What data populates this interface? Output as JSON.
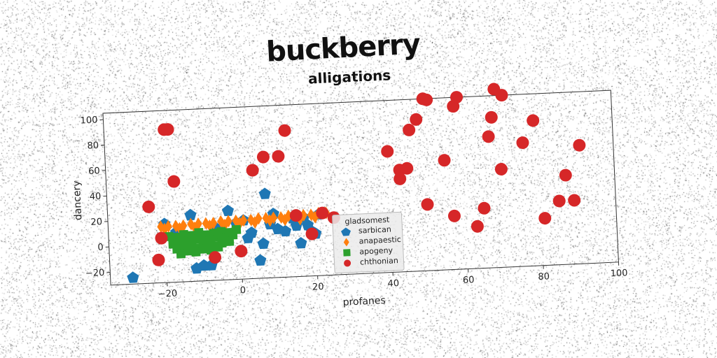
{
  "suptitle": "buckberry",
  "chart_data": {
    "type": "scatter",
    "title": "alligations",
    "xlabel": "profanes",
    "ylabel": "dancery",
    "xlim": [
      -35,
      100
    ],
    "ylim": [
      -30,
      105
    ],
    "xticks": [
      -20,
      0,
      20,
      40,
      60,
      80,
      100
    ],
    "yticks": [
      -20,
      0,
      20,
      40,
      60,
      80,
      100
    ],
    "grid": false,
    "legend": {
      "title": "gladsomest",
      "placement": "center"
    },
    "series": [
      {
        "name": "sarbican",
        "marker": "pentagon",
        "color": "#1f77b4",
        "x": [
          -29,
          -20,
          -17,
          -13,
          -12,
          -10,
          -8,
          -6,
          -5,
          -3,
          -1,
          1,
          2,
          3,
          5,
          6,
          7,
          8,
          9,
          10,
          12,
          14,
          15,
          16,
          17,
          18,
          19,
          20,
          21
        ],
        "y": [
          -25,
          16,
          9,
          22,
          -20,
          -18,
          -18,
          10,
          8,
          24,
          14,
          16,
          2,
          6,
          -16,
          -3,
          36,
          12,
          20,
          8,
          6,
          16,
          10,
          -4,
          16,
          10,
          5,
          3,
          18
        ]
      },
      {
        "name": "anapaestic",
        "marker": "diamond",
        "color": "#ff7f0e",
        "x": [
          -21,
          -19,
          -17,
          -15,
          -13,
          -11,
          -9,
          -7,
          -5,
          -3,
          -1,
          1,
          3,
          5,
          7,
          9,
          11,
          13,
          15,
          17,
          19,
          21,
          23,
          -20,
          -16,
          -12,
          -8,
          -4,
          0,
          4,
          8,
          12,
          16,
          20
        ],
        "y": [
          14,
          14,
          14,
          14,
          15,
          15,
          15,
          15,
          16,
          16,
          16,
          16,
          16,
          17,
          17,
          17,
          17,
          18,
          18,
          18,
          18,
          19,
          19,
          12,
          12,
          12,
          13,
          13,
          14,
          14,
          15,
          15,
          15,
          16
        ]
      },
      {
        "name": "apogeny",
        "marker": "square",
        "color": "#2ca02c",
        "x": [
          -19,
          -17,
          -15,
          -13,
          -11,
          -9,
          -7,
          -5,
          -3,
          -1,
          -18,
          -16,
          -14,
          -12,
          -10,
          -8,
          -6,
          -4,
          -2,
          -17,
          -15,
          -13,
          -11,
          -9,
          -7,
          -5,
          -3,
          -16,
          -14,
          -12,
          -10,
          -8,
          -6
        ],
        "y": [
          6,
          5,
          7,
          6,
          8,
          6,
          7,
          8,
          7,
          9,
          0,
          2,
          1,
          3,
          1,
          2,
          4,
          3,
          5,
          -4,
          -3,
          -2,
          -4,
          -2,
          -3,
          -1,
          0,
          -8,
          -6,
          -7,
          -5,
          -6,
          -4
        ]
      },
      {
        "name": "chthonian",
        "marker": "circle",
        "color": "#d62728",
        "x": [
          -24,
          -22,
          -21,
          -19,
          -17,
          -18,
          -7,
          0,
          4,
          7,
          11,
          13,
          15,
          19,
          22,
          25,
          40,
          43,
          43,
          45,
          46,
          48,
          50,
          50,
          51,
          55,
          57,
          58,
          59,
          63,
          65,
          67,
          68,
          69,
          70,
          71,
          76,
          79,
          81,
          85,
          87,
          89,
          91
        ],
        "y": [
          30,
          -12,
          5,
          90,
          49,
          90,
          -12,
          -8,
          55,
          65,
          65,
          85,
          18,
          3,
          19,
          15,
          65,
          50,
          43,
          51,
          81,
          89,
          105,
          22,
          104,
          56,
          12,
          98,
          105,
          3,
          17,
          73,
          88,
          110,
          47,
          105,
          67,
          84,
          7,
          20,
          40,
          20,
          63
        ]
      }
    ]
  }
}
